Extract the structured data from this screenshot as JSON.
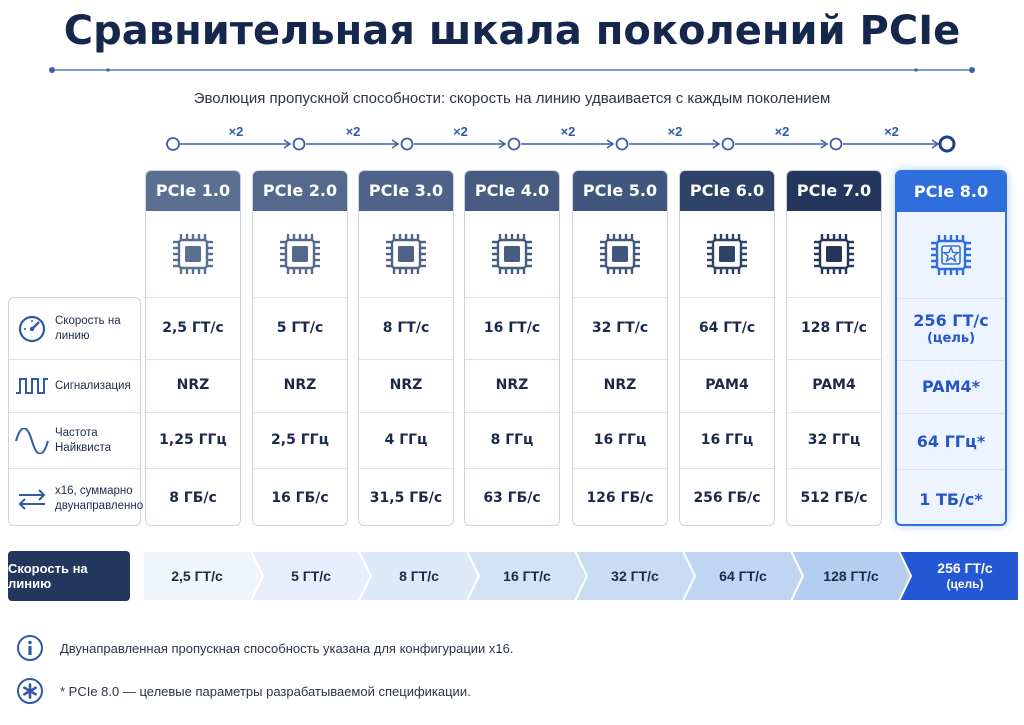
{
  "title": "Сравнительная шкала поколений PCIe",
  "subtitle": "Эволюция пропускной способности: скорость на линию удваивается с каждым поколением",
  "multiplier": "×2",
  "colors": {
    "headers": [
      "#5b6f91",
      "#55698c",
      "#4f6388",
      "#485c82",
      "#42577d",
      "#2f4268",
      "#24365c",
      "#2f6fdd"
    ],
    "highlight": "#2f6fdd",
    "dark": "#22365e"
  },
  "row_labels": [
    {
      "icon": "gauge-icon",
      "text": "Скорость на линию"
    },
    {
      "icon": "square-wave-icon",
      "text": "Сигнализация"
    },
    {
      "icon": "sine-wave-icon",
      "text": "Частота Найквиста"
    },
    {
      "icon": "bidirectional-arrows-icon",
      "text": "x16, суммарно двунаправленно"
    }
  ],
  "generations": [
    {
      "name": "PCIe 1.0",
      "speed": "2,5 ГТ/с",
      "signaling": "NRZ",
      "nyquist": "1,25 ГГц",
      "bandwidth": "8 ГБ/с"
    },
    {
      "name": "PCIe 2.0",
      "speed": "5 ГТ/с",
      "signaling": "NRZ",
      "nyquist": "2,5 ГГц",
      "bandwidth": "16 ГБ/с"
    },
    {
      "name": "PCIe 3.0",
      "speed": "8 ГТ/с",
      "signaling": "NRZ",
      "nyquist": "4 ГГц",
      "bandwidth": "31,5 ГБ/с"
    },
    {
      "name": "PCIe 4.0",
      "speed": "16 ГТ/с",
      "signaling": "NRZ",
      "nyquist": "8 ГГц",
      "bandwidth": "63 ГБ/с"
    },
    {
      "name": "PCIe 5.0",
      "speed": "32 ГТ/с",
      "signaling": "NRZ",
      "nyquist": "16 ГГц",
      "bandwidth": "126 ГБ/с"
    },
    {
      "name": "PCIe 6.0",
      "speed": "64 ГТ/с",
      "signaling": "PAM4",
      "nyquist": "16 ГГц",
      "bandwidth": "256 ГБ/с"
    },
    {
      "name": "PCIe 7.0",
      "speed": "128 ГТ/с",
      "signaling": "PAM4",
      "nyquist": "32 ГГц",
      "bandwidth": "512 ГБ/с"
    },
    {
      "name": "PCIe 8.0",
      "speed": "256 ГТ/с",
      "speed_note": "(цель)",
      "signaling": "PAM4*",
      "nyquist": "64 ГГц*",
      "bandwidth": "1 ТБ/с*"
    }
  ],
  "band": {
    "label": "Скорость на линию",
    "steps": [
      "2,5 ГТ/с",
      "5 ГТ/с",
      "8 ГТ/с",
      "16 ГТ/с",
      "32 ГТ/с",
      "64 ГТ/с",
      "128 ГТ/с",
      "256 ГТ/с"
    ],
    "last_note": "(цель)",
    "fills": [
      "#f1f6fd",
      "#e6effb",
      "#dde8f8",
      "#d3e2f6",
      "#c9dcf4",
      "#bfd5f2",
      "#b4cdf0",
      "#2457d6"
    ]
  },
  "footnotes": [
    {
      "icon": "info-icon",
      "text": "Двунаправленная пропускная способность указана для конфигурации x16."
    },
    {
      "icon": "asterisk-icon",
      "text": "* PCIe 8.0 — целевые параметры разрабатываемой спецификации."
    }
  ]
}
